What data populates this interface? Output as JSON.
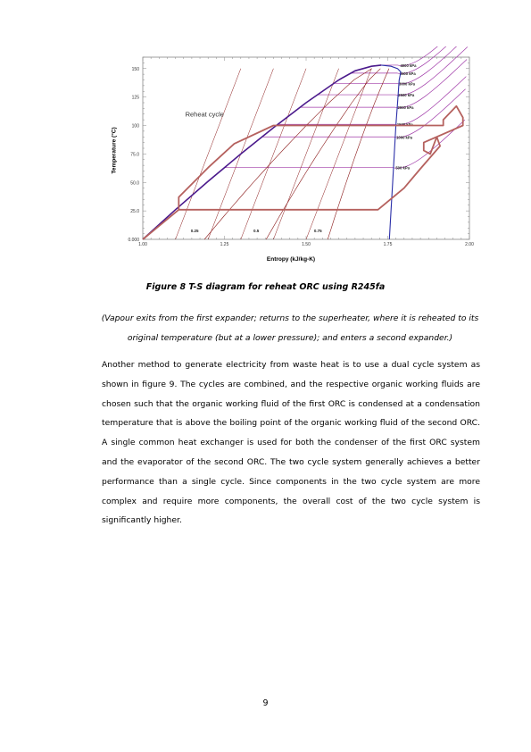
{
  "chart_data": {
    "type": "line",
    "title": "",
    "xlabel": "Entropy (kJ/kg-K)",
    "ylabel": "Temperature (°C)",
    "xlim": [
      1.0,
      2.0
    ],
    "ylim": [
      0,
      160
    ],
    "x_ticks": [
      "1.00",
      "1.25",
      "1.50",
      "1.75",
      "2.00"
    ],
    "y_ticks": [
      "0.000",
      "25.0",
      "50.0",
      "75.0",
      "100",
      "125",
      "150"
    ],
    "y_tick_values": [
      0,
      25,
      50,
      75,
      100,
      125,
      150
    ],
    "annotation": "Reheat cycle",
    "quality_labels": [
      "0.25",
      "0.5",
      "0.75"
    ],
    "isobars": [
      {
        "label": "4000 kPa",
        "t_sat": 153
      },
      {
        "label": "3500 kPa",
        "t_sat": 146
      },
      {
        "label": "3000 kPa",
        "t_sat": 137
      },
      {
        "label": "2500 kPa",
        "t_sat": 127
      },
      {
        "label": "2000 kPa",
        "t_sat": 116
      },
      {
        "label": "1500 kPa",
        "t_sat": 101
      },
      {
        "label": "1000 kPa",
        "t_sat": 90
      },
      {
        "label": "500 kPa",
        "t_sat": 63
      }
    ],
    "saturation_dome": {
      "liquid": [
        [
          1.0,
          0
        ],
        [
          1.1,
          26
        ],
        [
          1.2,
          51
        ],
        [
          1.3,
          75
        ],
        [
          1.4,
          98
        ],
        [
          1.5,
          120
        ],
        [
          1.6,
          140
        ],
        [
          1.65,
          148
        ],
        [
          1.7,
          152
        ],
        [
          1.73,
          153
        ]
      ],
      "vapor": [
        [
          1.73,
          153
        ],
        [
          1.76,
          152
        ],
        [
          1.78,
          150
        ],
        [
          1.79,
          147
        ],
        [
          1.785,
          140
        ],
        [
          1.78,
          120
        ],
        [
          1.775,
          100
        ],
        [
          1.77,
          75
        ],
        [
          1.765,
          50
        ],
        [
          1.76,
          26
        ],
        [
          1.755,
          0
        ]
      ]
    },
    "series": [
      {
        "values": [
          [
            1.0,
            0
          ],
          [
            1.11,
            26
          ],
          [
            1.11,
            37
          ],
          [
            1.2,
            63
          ],
          [
            1.28,
            84
          ],
          [
            1.4,
            100
          ],
          [
            1.76,
            100
          ],
          [
            1.92,
            100
          ],
          [
            1.92,
            105
          ],
          [
            1.96,
            117
          ],
          [
            1.98,
            107
          ],
          [
            1.98,
            100
          ],
          [
            1.86,
            85
          ],
          [
            1.86,
            78
          ],
          [
            1.88,
            75
          ],
          [
            1.9,
            90
          ],
          [
            1.91,
            82
          ],
          [
            1.85,
            62
          ],
          [
            1.8,
            45
          ],
          [
            1.72,
            26
          ],
          [
            1.11,
            26
          ]
        ]
      }
    ]
  },
  "figure": {
    "caption": "Figure 8 T-S diagram for reheat ORC using R245fa",
    "note": "(Vapour exits from the first expander; returns to the superheater, where it is reheated to its original temperature (but at a lower pressure); and enters a second expander.)"
  },
  "body": {
    "paragraph": "Another method to generate electricity from waste heat is to use a dual cycle system as shown in figure 9. The cycles are combined, and the respective organic working fluids are chosen such that the organic working fluid of the first ORC is condensed at a condensation temperature that is above the boiling point of the organic working fluid of the second ORC. A single common heat exchanger is used for both the condenser of the first ORC system and the evaporator of the second ORC. The two cycle system generally achieves a better performance than a single cycle. Since components in the two cycle system are more complex and require more components, the overall cost of the two cycle system is significantly higher."
  },
  "page_number": "9",
  "colors": {
    "isobar": "#a03aa8",
    "saturation_liquid": "#4b1a8c",
    "saturation_vapor": "#2b2fa8",
    "cycle": "#b5615e",
    "quality_lines": "#8b1a1a"
  }
}
